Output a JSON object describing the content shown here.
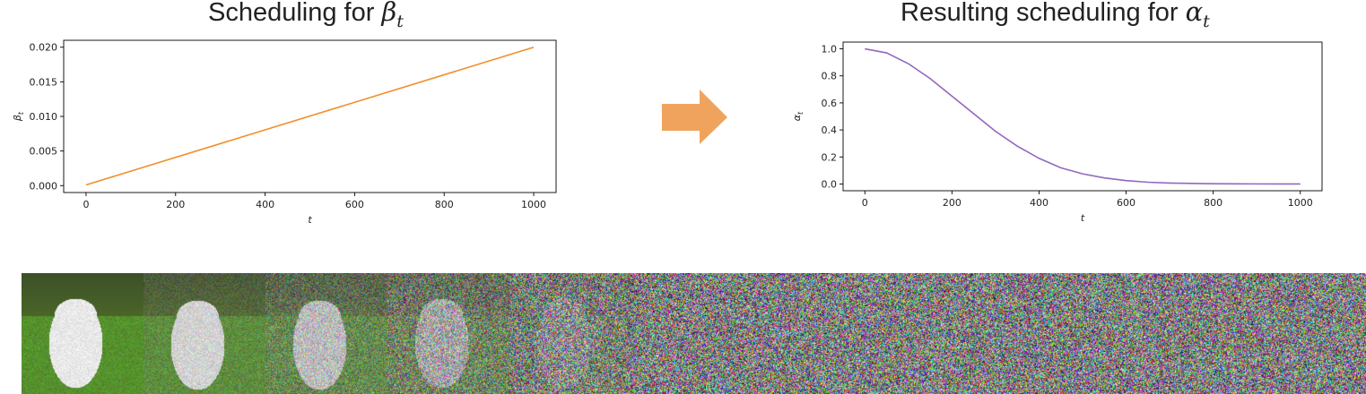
{
  "charts_header": {
    "left_title_text": "Scheduling for ",
    "left_title_symbol": "β",
    "left_title_sub": "t",
    "right_title_text": "Resulting scheduling for ",
    "right_title_symbol": "α",
    "right_title_sub": "t"
  },
  "colors": {
    "beta_line": "#f28e2b",
    "alpha_line": "#9467bd",
    "arrow": "#f0a35c"
  },
  "chart_data": [
    {
      "type": "line",
      "title": "Scheduling for β_t",
      "xlabel": "t",
      "ylabel": "β_t",
      "xlim": [
        -50,
        1050
      ],
      "ylim": [
        -0.001,
        0.021
      ],
      "xticks": [
        0,
        200,
        400,
        600,
        800,
        1000
      ],
      "yticks": [
        0.0,
        0.005,
        0.01,
        0.015,
        0.02
      ],
      "ytick_labels": [
        "0.000",
        "0.005",
        "0.010",
        "0.015",
        "0.020"
      ],
      "grid": false,
      "series": [
        {
          "x": [
            0,
            1000
          ],
          "y": [
            0.0001,
            0.02
          ]
        }
      ]
    },
    {
      "type": "line",
      "title": "Resulting scheduling for α_t",
      "xlabel": "t",
      "ylabel": "α_t",
      "xlim": [
        -50,
        1050
      ],
      "ylim": [
        -0.05,
        1.05
      ],
      "xticks": [
        0,
        200,
        400,
        600,
        800,
        1000
      ],
      "yticks": [
        0.0,
        0.2,
        0.4,
        0.6,
        0.8,
        1.0
      ],
      "ytick_labels": [
        "0.0",
        "0.2",
        "0.4",
        "0.6",
        "0.8",
        "1.0"
      ],
      "grid": false,
      "series": [
        {
          "x": [
            0,
            50,
            100,
            150,
            200,
            250,
            300,
            350,
            400,
            450,
            500,
            550,
            600,
            650,
            700,
            750,
            800,
            850,
            900,
            950,
            1000
          ],
          "y": [
            1.0,
            0.97,
            0.89,
            0.78,
            0.65,
            0.52,
            0.39,
            0.28,
            0.19,
            0.12,
            0.075,
            0.045,
            0.025,
            0.013,
            0.007,
            0.004,
            0.002,
            0.001,
            0.0005,
            0.0002,
            0.0001
          ]
        }
      ]
    }
  ]
}
